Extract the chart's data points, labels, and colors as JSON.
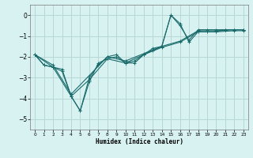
{
  "xlabel": "Humidex (Indice chaleur)",
  "bg_color": "#d8f2f2",
  "grid_color": "#b8d8d8",
  "line_color": "#1a6b6b",
  "xlim": [
    -0.5,
    23.5
  ],
  "ylim": [
    -5.5,
    0.5
  ],
  "xticks": [
    0,
    1,
    2,
    3,
    4,
    5,
    6,
    7,
    8,
    9,
    10,
    11,
    12,
    13,
    14,
    15,
    16,
    17,
    18,
    19,
    20,
    21,
    22,
    23
  ],
  "yticks": [
    0,
    -1,
    -2,
    -3,
    -4,
    -5
  ],
  "series_x": [
    [
      0,
      1,
      2,
      3,
      4,
      5,
      6,
      7,
      8,
      9,
      10,
      11,
      12,
      13,
      14,
      15,
      16,
      17,
      18,
      19,
      20,
      21,
      22,
      23
    ],
    [
      0,
      1,
      2,
      3,
      4,
      5,
      6,
      7,
      8,
      9,
      10,
      11,
      12,
      13,
      14,
      15,
      16,
      17,
      18,
      19,
      20,
      21,
      22,
      23
    ],
    [
      0,
      2,
      4,
      6,
      8,
      10,
      12,
      14,
      16,
      18,
      20,
      22,
      23
    ],
    [
      0,
      2,
      4,
      6,
      8,
      10,
      12,
      14,
      16,
      18,
      20,
      22,
      23
    ]
  ],
  "series_y": [
    [
      -1.9,
      -2.4,
      -2.5,
      -2.7,
      -3.9,
      -4.6,
      -3.2,
      -2.3,
      -2.1,
      -2.0,
      -2.3,
      -2.3,
      -1.9,
      -1.7,
      -1.5,
      0.0,
      -0.4,
      -1.3,
      -0.8,
      -0.8,
      -0.8,
      -0.7,
      -0.7,
      -0.7
    ],
    [
      -1.9,
      -2.4,
      -2.5,
      -2.6,
      -3.9,
      -4.6,
      -3.0,
      -2.4,
      -2.0,
      -1.9,
      -2.3,
      -2.2,
      -1.9,
      -1.6,
      -1.5,
      0.0,
      -0.5,
      -1.2,
      -0.7,
      -0.7,
      -0.7,
      -0.7,
      -0.7,
      -0.7
    ],
    [
      -1.9,
      -2.4,
      -3.8,
      -2.9,
      -2.0,
      -2.2,
      -1.85,
      -1.5,
      -1.25,
      -0.75,
      -0.75,
      -0.7,
      -0.7
    ],
    [
      -1.9,
      -2.5,
      -3.9,
      -3.1,
      -2.1,
      -2.3,
      -1.9,
      -1.55,
      -1.3,
      -0.8,
      -0.8,
      -0.75,
      -0.75
    ]
  ]
}
